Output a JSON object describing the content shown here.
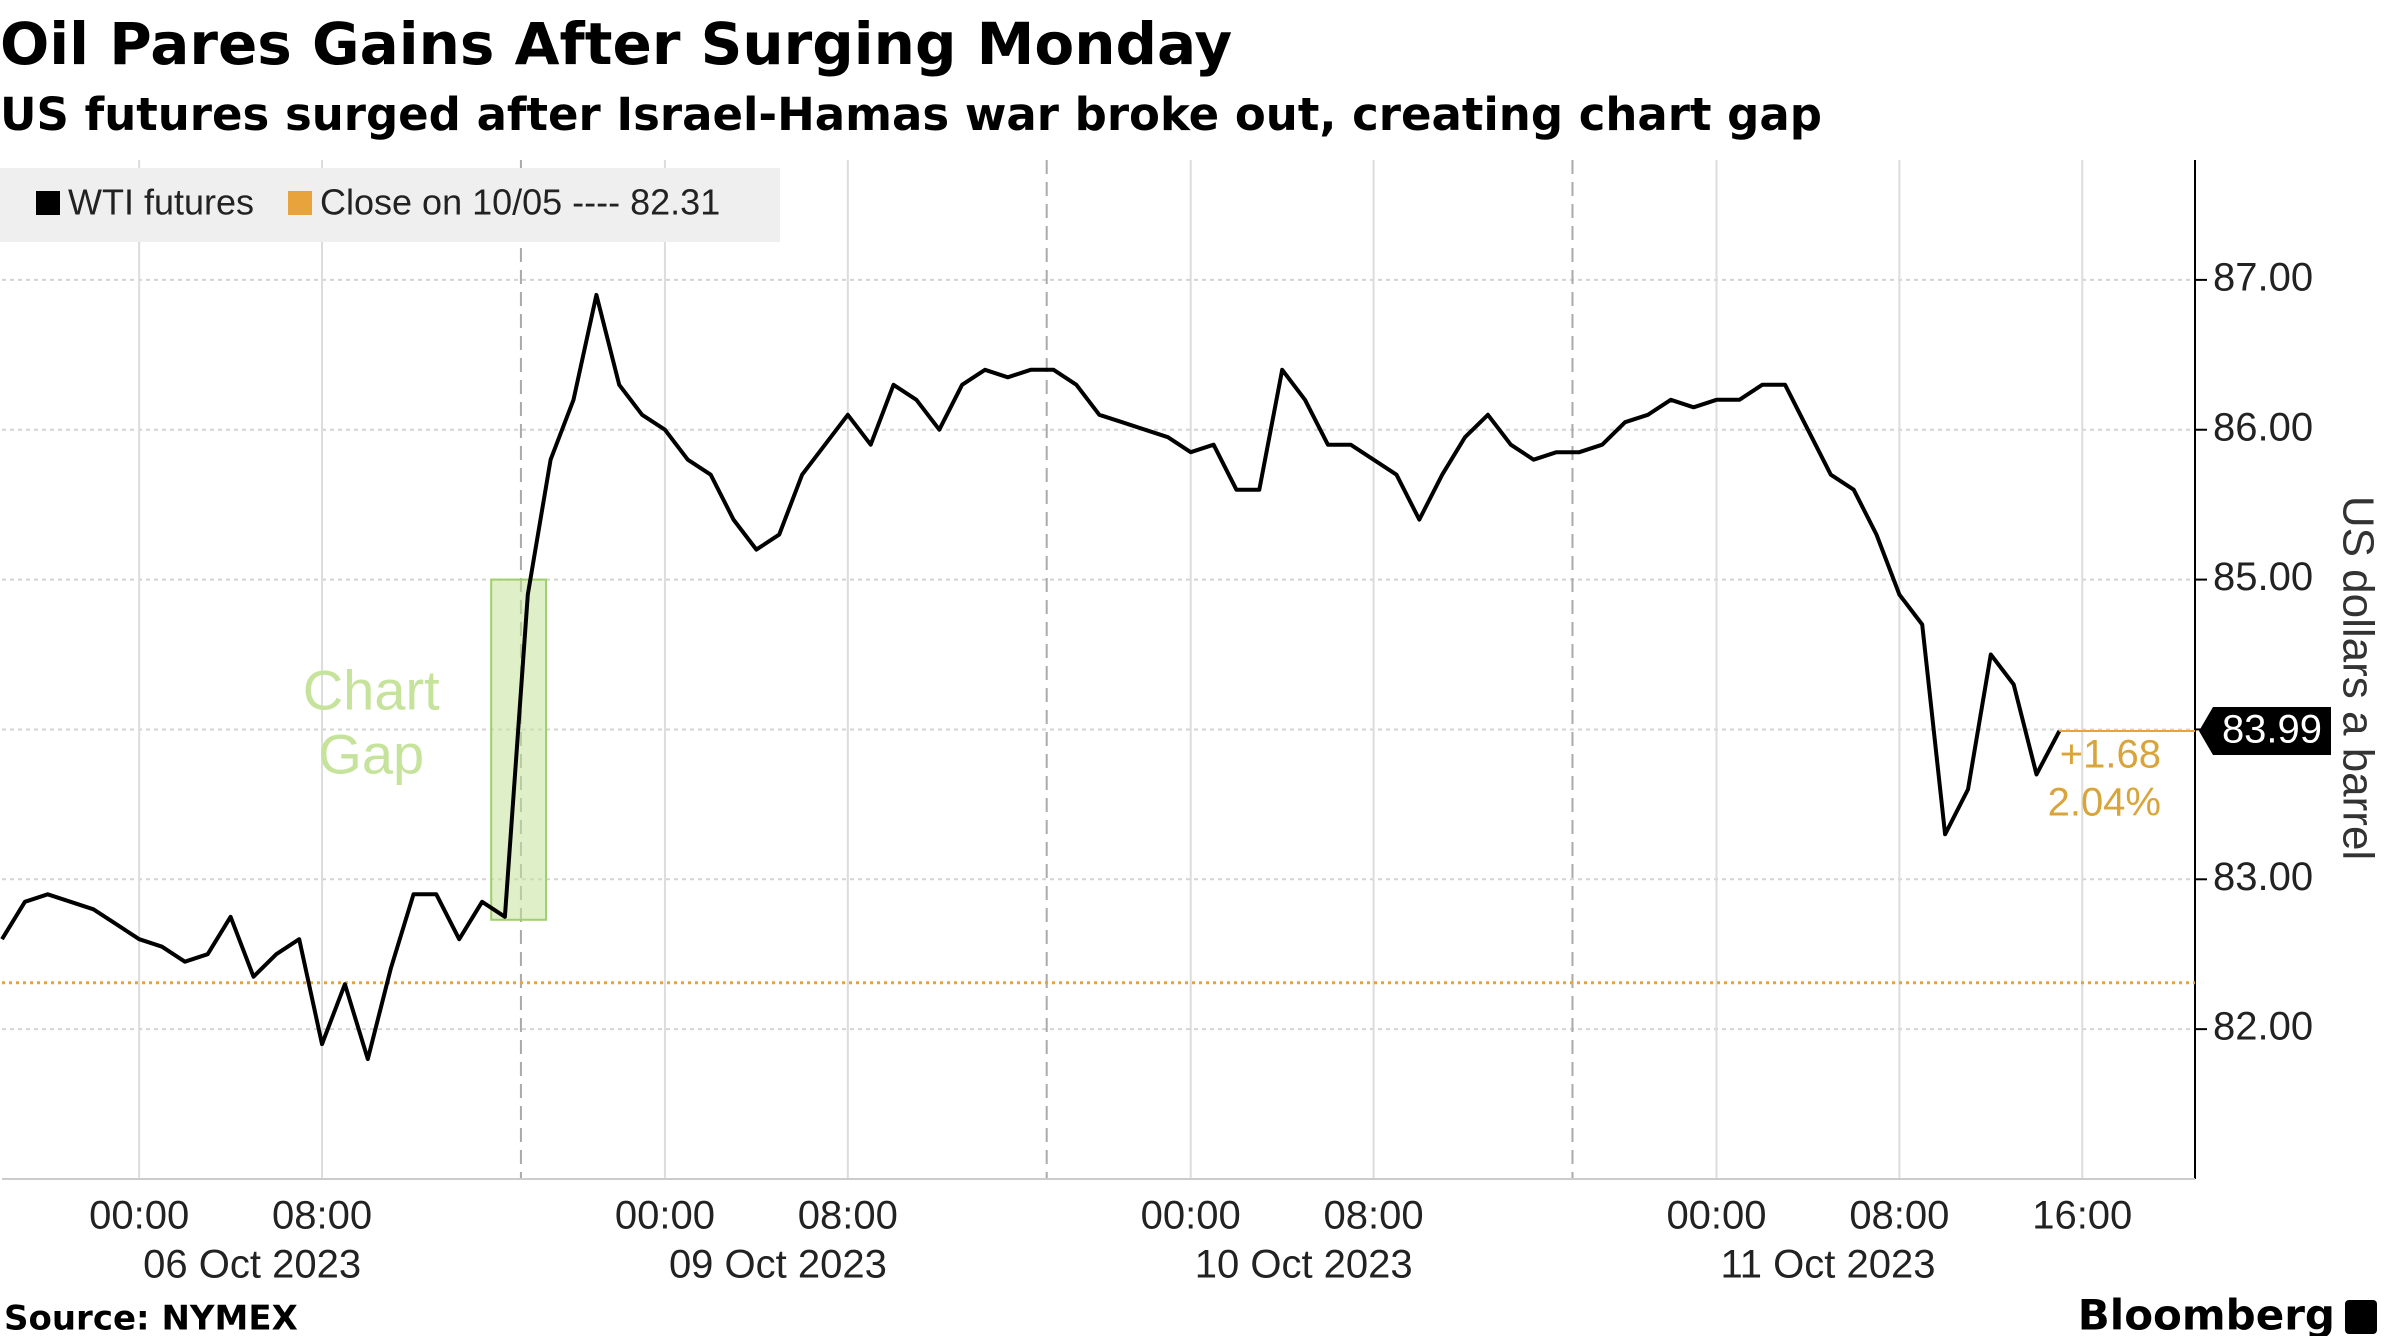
{
  "chart_data": {
    "type": "line",
    "title": "Oil Pares Gains After Surging Monday",
    "subtitle": "US futures surged after Israel-Hamas war broke out, creating chart gap",
    "y_axis_label": "US dollars a barrel",
    "source": "Source: NYMEX",
    "brand": "Bloomberg",
    "categories": [
      null,
      null,
      null,
      null,
      null,
      null,
      "00:00",
      null,
      null,
      null,
      null,
      null,
      null,
      null,
      "08:00",
      null,
      null,
      null,
      null,
      null,
      null,
      null,
      null,
      null,
      null,
      null,
      null,
      null,
      null,
      "00:00",
      null,
      null,
      null,
      null,
      null,
      null,
      null,
      "08:00",
      null,
      null,
      null,
      null,
      null,
      null,
      null,
      null,
      null,
      null,
      null,
      null,
      null,
      null,
      "00:00",
      null,
      null,
      null,
      null,
      null,
      null,
      null,
      "08:00",
      null,
      null,
      null,
      null,
      null,
      null,
      null,
      null,
      null,
      null,
      null,
      null,
      null,
      null,
      "00:00",
      null,
      null,
      null,
      null,
      null,
      null,
      null,
      "08:00",
      null,
      null,
      null,
      null,
      null,
      null,
      null,
      "16:00"
    ],
    "category_groups": [
      {
        "label": "06 Oct 2023",
        "size": 23
      },
      {
        "label": "09 Oct 2023",
        "size": 23
      },
      {
        "label": "10 Oct 2023",
        "size": 23
      },
      {
        "label": "11 Oct 2023",
        "size": 23
      }
    ],
    "series": [
      {
        "name": "WTI futures",
        "color": "#000000",
        "values": [
          82.6,
          82.85,
          82.9,
          82.85,
          82.8,
          82.7,
          82.6,
          82.55,
          82.45,
          82.5,
          82.75,
          82.35,
          82.5,
          82.6,
          81.9,
          82.3,
          81.8,
          82.4,
          82.9,
          82.9,
          82.6,
          82.85,
          82.75,
          84.9,
          85.8,
          86.2,
          86.9,
          86.3,
          86.1,
          86.0,
          85.8,
          85.7,
          85.4,
          85.2,
          85.3,
          85.7,
          85.9,
          86.1,
          85.9,
          86.3,
          86.2,
          86.0,
          86.3,
          86.4,
          86.35,
          86.4,
          86.4,
          86.3,
          86.1,
          86.05,
          86.0,
          85.95,
          85.85,
          85.9,
          85.6,
          85.6,
          86.4,
          86.2,
          85.9,
          85.9,
          85.8,
          85.7,
          85.4,
          85.7,
          85.95,
          86.1,
          85.9,
          85.8,
          85.85,
          85.85,
          85.9,
          86.05,
          86.1,
          86.2,
          86.15,
          86.2,
          86.2,
          86.3,
          86.3,
          86.0,
          85.7,
          85.6,
          85.3,
          84.9,
          84.7,
          83.3,
          83.6,
          84.5,
          84.3,
          83.7,
          83.99,
          null
        ]
      }
    ],
    "reference_line": {
      "name": "Close on 10/05 ---- 82.31",
      "value": 82.31,
      "color": "#e8a33d"
    },
    "last_change": {
      "value": 1.68,
      "label": "+1.68"
    },
    "last_change_pct": {
      "value": 2.04,
      "label": "2.04%"
    },
    "annotation": {
      "lines": [
        "Chart",
        "Gap"
      ],
      "y_range": [
        82.73,
        85.0
      ],
      "color": "#c5e39b"
    },
    "ylim": [
      81,
      87.8
    ],
    "yticks": [
      {
        "value": 82,
        "label": "82.00"
      },
      {
        "value": 83,
        "label": "83.00"
      },
      {
        "value": 84,
        "label": "84.00"
      },
      {
        "value": 85,
        "label": "85.00"
      },
      {
        "value": 86,
        "label": "86.00"
      },
      {
        "value": 87,
        "label": "87.00"
      }
    ],
    "grid": true
  }
}
